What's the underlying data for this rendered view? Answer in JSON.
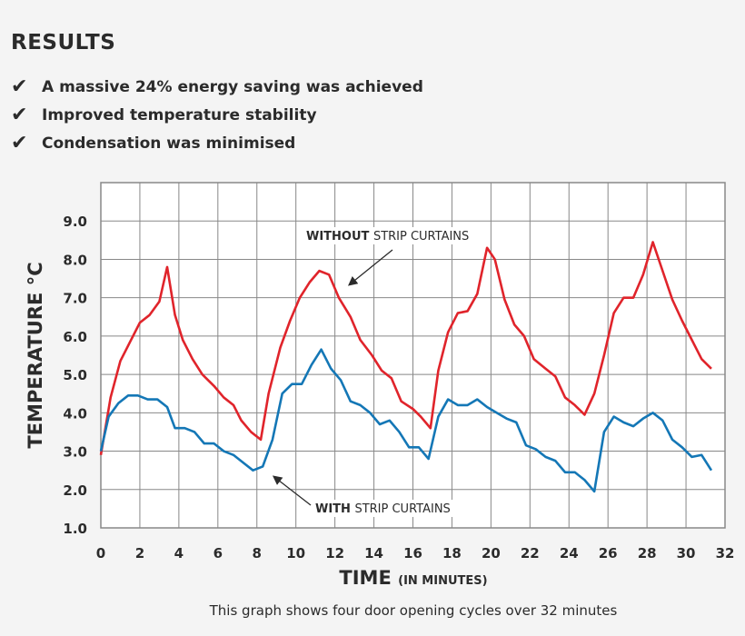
{
  "header": {
    "title": "RESULTS",
    "bullets": [
      "A massive 24% energy saving was achieved",
      "Improved temperature stability",
      "Condensation was minimised"
    ],
    "bullet_icon": "checkmark-icon"
  },
  "chart_data": {
    "type": "line",
    "xlabel": "TIME",
    "xlabel_suffix": "(IN MINUTES)",
    "ylabel": "TEMPERATURE °C",
    "xlim": [
      0,
      32
    ],
    "ylim": [
      1,
      10
    ],
    "xticks": [
      "0",
      "2",
      "4",
      "6",
      "8",
      "10",
      "12",
      "14",
      "16",
      "18",
      "20",
      "22",
      "24",
      "26",
      "28",
      "30",
      "32"
    ],
    "yticks": [
      "1.0",
      "2.0",
      "3.0",
      "4.0",
      "5.0",
      "6.0",
      "7.0",
      "8.0",
      "9.0"
    ],
    "grid": true,
    "series": [
      {
        "name": "WITHOUT STRIP CURTAINS",
        "name_bold": "WITHOUT",
        "name_rest": "STRIP CURTAINS",
        "color": "#e0242b",
        "points": [
          [
            0,
            2.9
          ],
          [
            0.5,
            4.4
          ],
          [
            1,
            5.35
          ],
          [
            1.5,
            5.85
          ],
          [
            2,
            6.35
          ],
          [
            2.5,
            6.55
          ],
          [
            3,
            6.9
          ],
          [
            3.4,
            7.8
          ],
          [
            3.8,
            6.55
          ],
          [
            4.2,
            5.9
          ],
          [
            4.7,
            5.4
          ],
          [
            5.2,
            5.0
          ],
          [
            5.8,
            4.7
          ],
          [
            6.3,
            4.4
          ],
          [
            6.8,
            4.2
          ],
          [
            7.2,
            3.8
          ],
          [
            7.7,
            3.5
          ],
          [
            8.2,
            3.3
          ],
          [
            8.6,
            4.5
          ],
          [
            9.2,
            5.7
          ],
          [
            9.7,
            6.4
          ],
          [
            10.2,
            7.0
          ],
          [
            10.7,
            7.4
          ],
          [
            11.2,
            7.7
          ],
          [
            11.7,
            7.6
          ],
          [
            12.2,
            7.0
          ],
          [
            12.8,
            6.5
          ],
          [
            13.3,
            5.9
          ],
          [
            13.9,
            5.5
          ],
          [
            14.4,
            5.1
          ],
          [
            14.9,
            4.9
          ],
          [
            15.4,
            4.3
          ],
          [
            16,
            4.1
          ],
          [
            16.4,
            3.9
          ],
          [
            16.9,
            3.6
          ],
          [
            17.3,
            5.1
          ],
          [
            17.8,
            6.1
          ],
          [
            18.3,
            6.6
          ],
          [
            18.8,
            6.65
          ],
          [
            19.3,
            7.1
          ],
          [
            19.8,
            8.3
          ],
          [
            20.2,
            8.0
          ],
          [
            20.7,
            6.95
          ],
          [
            21.2,
            6.3
          ],
          [
            21.7,
            6.0
          ],
          [
            22.2,
            5.4
          ],
          [
            22.8,
            5.15
          ],
          [
            23.3,
            4.95
          ],
          [
            23.8,
            4.4
          ],
          [
            24.3,
            4.2
          ],
          [
            24.8,
            3.95
          ],
          [
            25.3,
            4.5
          ],
          [
            25.8,
            5.5
          ],
          [
            26.3,
            6.6
          ],
          [
            26.8,
            7.0
          ],
          [
            27.3,
            7.0
          ],
          [
            27.8,
            7.6
          ],
          [
            28.3,
            8.45
          ],
          [
            28.8,
            7.7
          ],
          [
            29.3,
            6.95
          ],
          [
            29.8,
            6.4
          ],
          [
            30.3,
            5.9
          ],
          [
            30.8,
            5.4
          ],
          [
            31.3,
            5.15
          ]
        ]
      },
      {
        "name": "WITH STRIP CURTAINS",
        "name_bold": "WITH",
        "name_rest": "STRIP CURTAINS",
        "color": "#1477b6",
        "points": [
          [
            0,
            3.0
          ],
          [
            0.4,
            3.9
          ],
          [
            0.9,
            4.25
          ],
          [
            1.4,
            4.45
          ],
          [
            1.9,
            4.45
          ],
          [
            2.4,
            4.35
          ],
          [
            2.9,
            4.35
          ],
          [
            3.4,
            4.15
          ],
          [
            3.8,
            3.6
          ],
          [
            4.3,
            3.6
          ],
          [
            4.8,
            3.5
          ],
          [
            5.3,
            3.2
          ],
          [
            5.8,
            3.2
          ],
          [
            6.3,
            3.0
          ],
          [
            6.8,
            2.9
          ],
          [
            7.3,
            2.7
          ],
          [
            7.8,
            2.5
          ],
          [
            8.3,
            2.6
          ],
          [
            8.8,
            3.3
          ],
          [
            9.3,
            4.5
          ],
          [
            9.8,
            4.75
          ],
          [
            10.3,
            4.75
          ],
          [
            10.8,
            5.25
          ],
          [
            11.3,
            5.65
          ],
          [
            11.8,
            5.15
          ],
          [
            12.3,
            4.85
          ],
          [
            12.8,
            4.3
          ],
          [
            13.3,
            4.2
          ],
          [
            13.8,
            4.0
          ],
          [
            14.3,
            3.7
          ],
          [
            14.8,
            3.8
          ],
          [
            15.3,
            3.5
          ],
          [
            15.8,
            3.1
          ],
          [
            16.3,
            3.1
          ],
          [
            16.8,
            2.8
          ],
          [
            17.3,
            3.9
          ],
          [
            17.8,
            4.35
          ],
          [
            18.3,
            4.2
          ],
          [
            18.8,
            4.2
          ],
          [
            19.3,
            4.35
          ],
          [
            19.8,
            4.15
          ],
          [
            20.3,
            4.0
          ],
          [
            20.8,
            3.85
          ],
          [
            21.3,
            3.75
          ],
          [
            21.8,
            3.15
          ],
          [
            22.3,
            3.05
          ],
          [
            22.8,
            2.85
          ],
          [
            23.3,
            2.75
          ],
          [
            23.8,
            2.45
          ],
          [
            24.3,
            2.45
          ],
          [
            24.8,
            2.25
          ],
          [
            25.3,
            1.95
          ],
          [
            25.8,
            3.5
          ],
          [
            26.3,
            3.9
          ],
          [
            26.8,
            3.75
          ],
          [
            27.3,
            3.65
          ],
          [
            27.8,
            3.85
          ],
          [
            28.3,
            4.0
          ],
          [
            28.8,
            3.8
          ],
          [
            29.3,
            3.3
          ],
          [
            29.8,
            3.1
          ],
          [
            30.3,
            2.85
          ],
          [
            30.8,
            2.9
          ],
          [
            31.3,
            2.5
          ]
        ]
      }
    ]
  },
  "caption": "This graph shows four door opening cycles over 32 minutes"
}
